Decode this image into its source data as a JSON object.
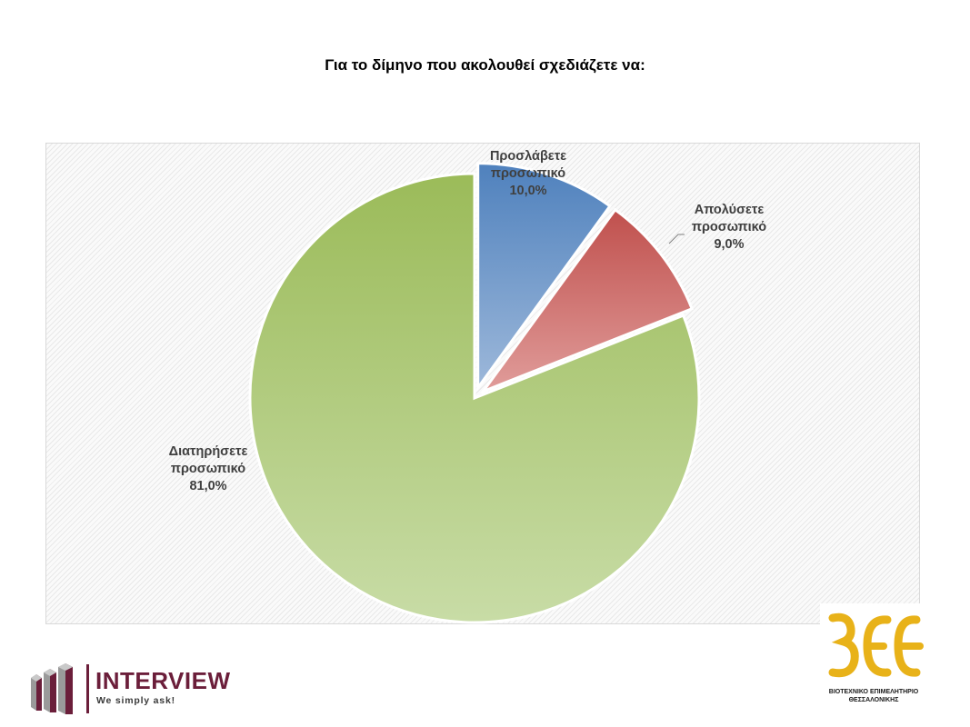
{
  "title": "Για το δίμηνο που ακολουθεί σχεδιάζετε να:",
  "chart_data": {
    "type": "pie",
    "title": "Για το δίμηνο που ακολουθεί σχεδιάζετε να:",
    "slices": [
      {
        "label": [
          "Προσλάβετε",
          "προσωπικό"
        ],
        "value": 10.0,
        "value_label": "10,0%",
        "color_top": "#4f81bd",
        "color_bottom": "#9db8da",
        "exploded": true
      },
      {
        "label": [
          "Απολύσετε",
          "προσωπικό"
        ],
        "value": 9.0,
        "value_label": "9,0%",
        "color_top": "#c0504d",
        "color_bottom": "#e09c9a",
        "exploded": true
      },
      {
        "label": [
          "Διατηρήσετε",
          "προσωπικό"
        ],
        "value": 81.0,
        "value_label": "81,0%",
        "color_top": "#9bbb59",
        "color_bottom": "#c8dca6",
        "exploded": false
      }
    ],
    "legend": "none",
    "data_labels": "outside"
  },
  "logos": {
    "interview": {
      "name": "INTERVIEW",
      "tagline": "We simply ask!",
      "color": "#6b1e3a"
    },
    "bee": {
      "mark": "ΒΕΘ",
      "caption_line1": "ΒΙΟΤΕΧΝΙΚΟ ΕΠΙΜΕΛΗΤΗΡΙΟ",
      "caption_line2": "ΘΕΣΣΑΛΟΝΙΚΗΣ",
      "color": "#e8b219"
    }
  }
}
